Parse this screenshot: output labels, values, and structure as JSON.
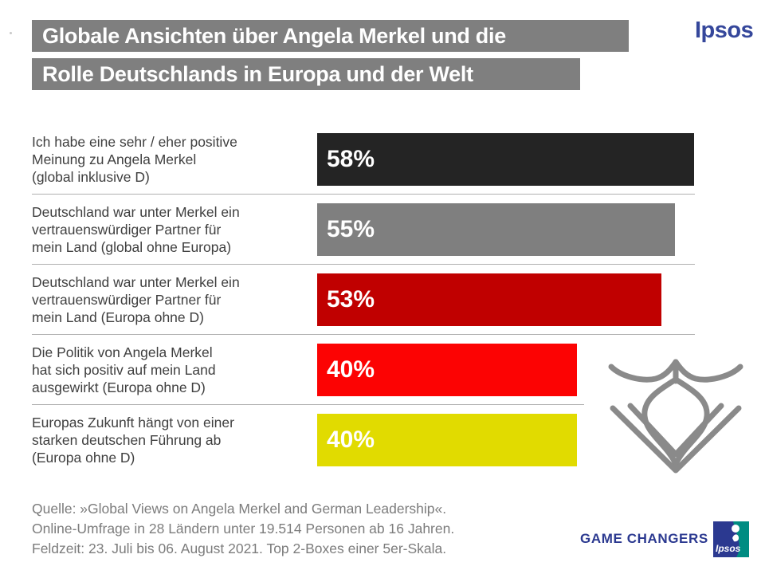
{
  "header": {
    "title_line1": "Globale Ansichten über Angela Merkel und die",
    "title_line2": "Rolle Deutschlands in Europa und der Welt",
    "brand": "Ipsos"
  },
  "chart_data": {
    "type": "bar",
    "orientation": "horizontal",
    "title": "Globale Ansichten über Angela Merkel und die Rolle Deutschlands in Europa und der Welt",
    "unit": "%",
    "xlim": [
      0,
      58
    ],
    "grid": false,
    "legend": false,
    "categories": [
      "Ich habe eine sehr / eher positive Meinung zu Angela Merkel (global inklusive D)",
      "Deutschland war unter Merkel ein vertrauenswürdiger Partner für mein Land (global ohne Europa)",
      "Deutschland war unter Merkel ein vertrauenswürdiger Partner für mein Land (Europa ohne D)",
      "Die Politik von Angela Merkel hat sich positiv auf mein Land ausgewirkt (Europa ohne D)",
      "Europas Zukunft hängt von einer starken deutschen Führung ab (Europa ohne D)"
    ],
    "values": [
      58,
      55,
      53,
      40,
      40
    ],
    "rows": [
      {
        "label_lines": [
          "Ich habe eine sehr / eher positive",
          "Meinung zu Angela Merkel",
          "(global inklusive D)"
        ],
        "value": 58,
        "value_label": "58%",
        "color": "#242424"
      },
      {
        "label_lines": [
          "Deutschland war unter Merkel ein",
          "vertrauenswürdiger Partner für",
          "mein Land (global ohne Europa)"
        ],
        "value": 55,
        "value_label": "55%",
        "color": "#7f7f7f"
      },
      {
        "label_lines": [
          "Deutschland war unter Merkel ein",
          "vertrauenswürdiger Partner für",
          "mein Land (Europa ohne D)"
        ],
        "value": 53,
        "value_label": "53%",
        "color": "#c00000"
      },
      {
        "label_lines": [
          "Die Politik von Angela Merkel",
          "hat sich positiv auf mein Land",
          "ausgewirkt (Europa ohne D)"
        ],
        "value": 40,
        "value_label": "40%",
        "color": "#fc0303"
      },
      {
        "label_lines": [
          "Europas Zukunft hängt von einer",
          "starken deutschen Führung ab",
          "(Europa ohne D)"
        ],
        "value": 40,
        "value_label": "40%",
        "color": "#e1db00"
      }
    ]
  },
  "footer": {
    "source_lines": [
      "Quelle: »Global Views on Angela Merkel and German Leadership«.",
      "Online-Umfrage in 28 Ländern unter 19.514 Personen ab 16 Jahren.",
      "Feldzeit: 23. Juli bis 06. August 2021. Top 2-Boxes einer 5er-Skala."
    ],
    "tagline": "GAME CHANGERS",
    "logo_text": "Ipsos"
  },
  "colors": {
    "title_background": "#7f7f7f",
    "ipsos_wordmark_blue": "#35479b",
    "tagline_blue": "#2b3990",
    "logo_teal": "#008c82",
    "divider_gray": "#b0b0b0",
    "eagle_line_gray": "#8a8a8a"
  }
}
